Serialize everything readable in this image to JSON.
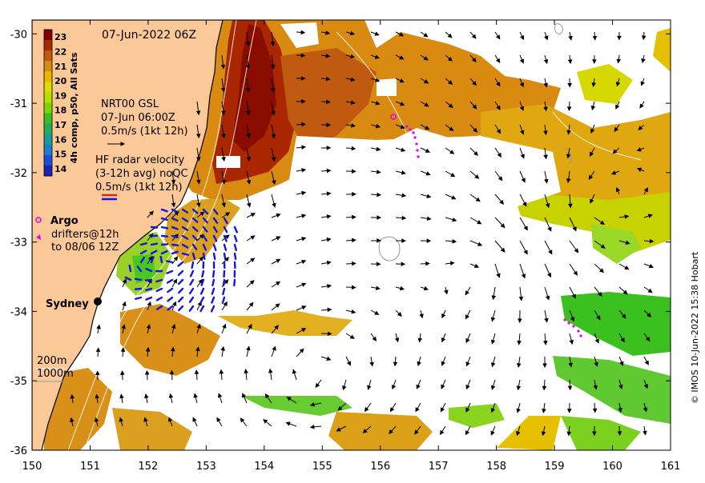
{
  "map": {
    "date_title": "07-Jun-2022 06Z",
    "credit": "© IMOS 10-Jun-2022 15:38 Hobart",
    "lon_ticks": [
      "150",
      "151",
      "152",
      "153",
      "154",
      "155",
      "156",
      "157",
      "158",
      "159",
      "160",
      "161"
    ],
    "lat_ticks": [
      "-30",
      "-31",
      "-32",
      "-33",
      "-34",
      "-35",
      "-36"
    ],
    "lon_range": [
      150,
      161
    ],
    "lat_range": [
      -36,
      -29.8
    ],
    "city_label": "Sydney"
  },
  "colorbar": {
    "label": "4h comp, p50, All Sats",
    "ticks": [
      "23",
      "22",
      "21",
      "20",
      "19",
      "18",
      "17",
      "16",
      "15",
      "14"
    ],
    "range": [
      13.5,
      23.5
    ],
    "colors": [
      "#800000",
      "#a52a00",
      "#c05a10",
      "#d98a10",
      "#e8b800",
      "#d9dd00",
      "#b4e000",
      "#7ed400",
      "#39c020",
      "#2aa860",
      "#1a9aa0",
      "#1a7ec8",
      "#1a4ed8",
      "#1a22b0"
    ]
  },
  "legend": {
    "gsl_title": "NRT00 GSL",
    "gsl_time": "07-Jun 06:00Z",
    "gsl_scale": "0.5m/s (1kt 12h)",
    "hf_title": "HF radar velocity",
    "hf_avg": "(3-12h avg) noQC",
    "hf_scale": "0.5m/s (1kt 12h)",
    "argo": "Argo",
    "drifters_line1": "drifters@12h",
    "drifters_line2": "to 08/06 12Z",
    "iso_200": "200m",
    "iso_1000": "1000m"
  },
  "colors": {
    "land": "#fbc898",
    "sst_warm": "#d88a10",
    "sst_hot": "#a02000",
    "sst_green": "#50c820",
    "hf_blue": "#1515e0",
    "argo_magenta": "#e800e8"
  }
}
